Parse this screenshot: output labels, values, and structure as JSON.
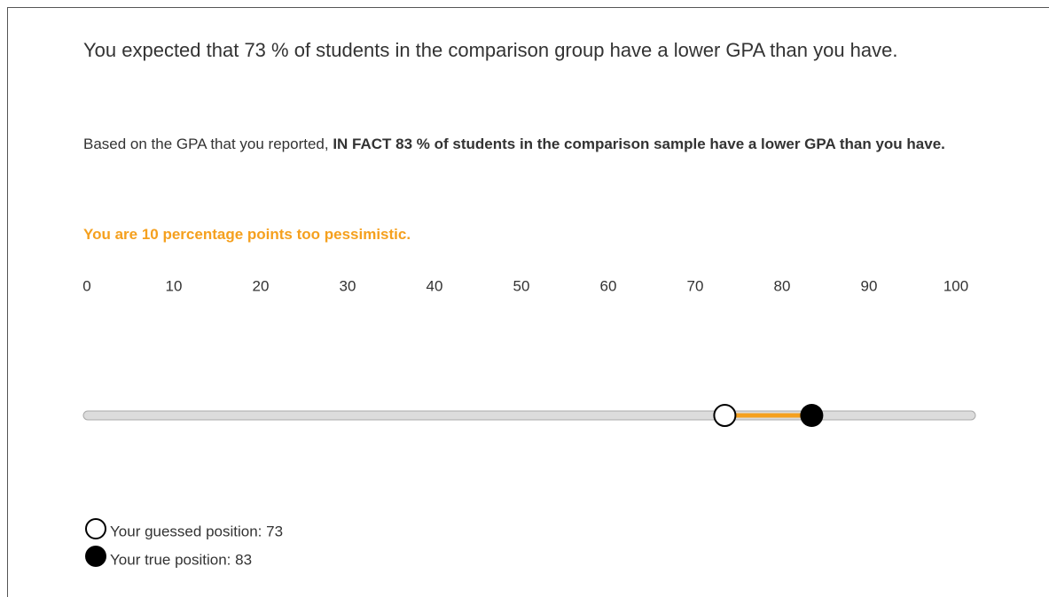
{
  "expectation": "You expected that 73 % of students in the comparison group have a lower GPA than you have.",
  "fact": {
    "intro": "Based on the GPA that you reported,",
    "bold": "IN FACT 83 % of students in the comparison sample have a lower GPA than you have."
  },
  "verdict": "You are 10 percentage points too pessimistic.",
  "slider": {
    "min": 0,
    "max": 100,
    "ticks": [
      0,
      10,
      20,
      30,
      40,
      50,
      60,
      70,
      80,
      90,
      100
    ],
    "guess": 73,
    "true": 83
  },
  "legend": {
    "guess": "Your guessed position: 73",
    "true": "Your true position: 83"
  }
}
